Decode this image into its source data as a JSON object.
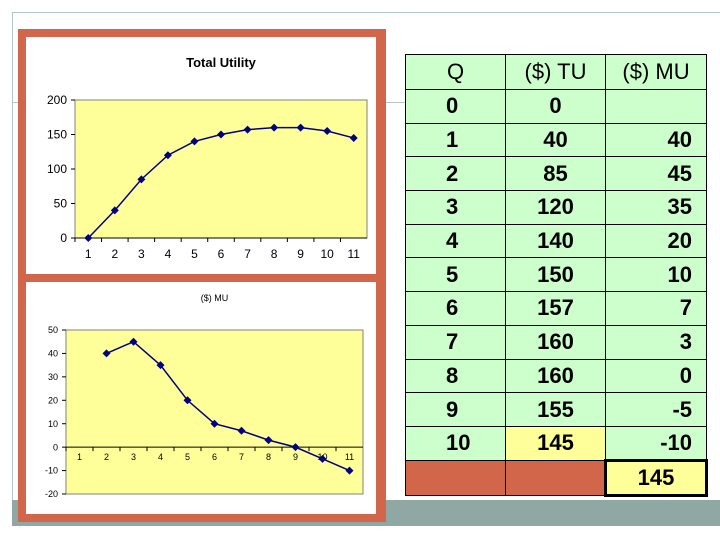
{
  "colors": {
    "frame": "#d1664a",
    "plot_bg": "#ffff99",
    "series": "#000080",
    "table_bg": "#ccffcc",
    "highlight": "#ffff99"
  },
  "table": {
    "headers": [
      "Q",
      "($)  TU",
      "($)  MU"
    ],
    "rows": [
      {
        "q": "0",
        "tu": "0",
        "mu": ""
      },
      {
        "q": "1",
        "tu": "40",
        "mu": "40"
      },
      {
        "q": "2",
        "tu": "85",
        "mu": "45"
      },
      {
        "q": "3",
        "tu": "120",
        "mu": "35"
      },
      {
        "q": "4",
        "tu": "140",
        "mu": "20"
      },
      {
        "q": "5",
        "tu": "150",
        "mu": "10"
      },
      {
        "q": "6",
        "tu": "157",
        "mu": "7"
      },
      {
        "q": "7",
        "tu": "160",
        "mu": "3"
      },
      {
        "q": "8",
        "tu": "160",
        "mu": "0"
      },
      {
        "q": "9",
        "tu": "155",
        "mu": "-5"
      },
      {
        "q": "10",
        "tu": "145",
        "mu": "-10"
      }
    ],
    "footer": {
      "q": "",
      "tu": "",
      "mu": "145"
    }
  },
  "chart_data": [
    {
      "type": "line",
      "title": "Total Utility",
      "x": [
        1,
        2,
        3,
        4,
        5,
        6,
        7,
        8,
        9,
        10,
        11
      ],
      "values": [
        0,
        40,
        85,
        120,
        140,
        150,
        157,
        160,
        160,
        155,
        145
      ],
      "ylim": [
        0,
        200
      ],
      "yticks": [
        0,
        50,
        100,
        150,
        200
      ],
      "xticks": [
        "1",
        "2",
        "3",
        "4",
        "5",
        "6",
        "7",
        "8",
        "9",
        "10",
        "11"
      ],
      "grid": false,
      "marker": "diamond"
    },
    {
      "type": "line",
      "title": "($)  MU",
      "x": [
        2,
        3,
        4,
        5,
        6,
        7,
        8,
        9,
        10,
        11
      ],
      "values": [
        40,
        45,
        35,
        20,
        10,
        7,
        3,
        0,
        -5,
        -10
      ],
      "ylim": [
        -20,
        50
      ],
      "yticks": [
        -20,
        -10,
        0,
        10,
        20,
        30,
        40,
        50
      ],
      "xticks": [
        "1",
        "2",
        "3",
        "4",
        "5",
        "6",
        "7",
        "8",
        "9",
        "10",
        "11"
      ],
      "grid": false,
      "marker": "diamond"
    }
  ]
}
